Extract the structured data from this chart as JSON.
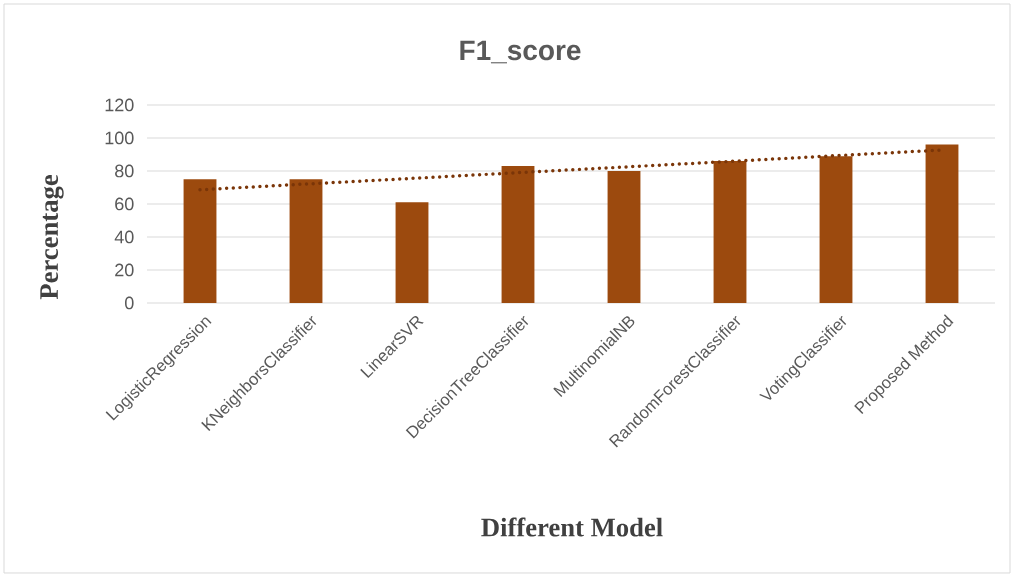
{
  "chart_data": {
    "type": "bar",
    "title": "F1_score",
    "xlabel": "Different Model",
    "ylabel": "Percentage",
    "categories": [
      "LogisticRegression",
      "KNeighborsClassifier",
      "LinearSVR",
      "DecisionTreeClassifier",
      "MultinomialNB",
      "RandomForestClassifier",
      "VotingClassifier",
      "Proposed Method"
    ],
    "series": [
      {
        "color": "#9c4a0e",
        "values": [
          75,
          75,
          61,
          83,
          80,
          86,
          89,
          96
        ]
      },
      {
        "type": "line",
        "color": "#7a3508",
        "line_style": "dotted",
        "values": [
          68.6,
          72.1,
          75.5,
          79.0,
          82.4,
          85.8,
          89.3,
          92.7
        ]
      }
    ],
    "ylim": [
      0,
      120
    ],
    "yticks": [
      0,
      20,
      40,
      60,
      80,
      100,
      120
    ],
    "grid": "y"
  }
}
